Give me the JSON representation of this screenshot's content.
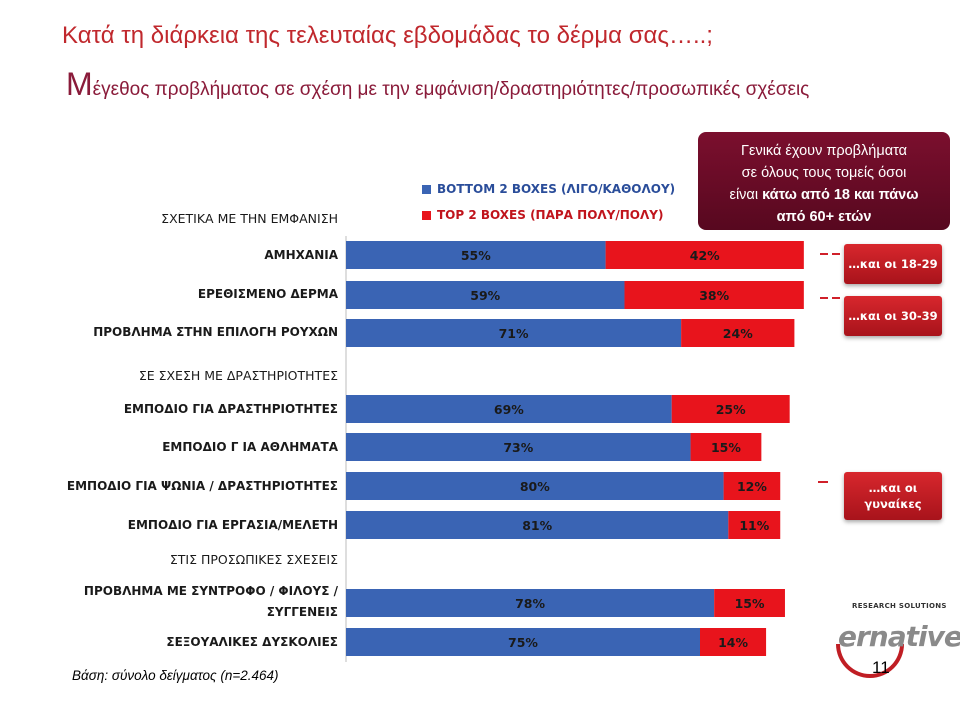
{
  "title_line1": "Κατά τη διάρκεια της τελευταίας εβδομάδας το δέρμα σας…..;",
  "title_line2_first": "Μ",
  "title_line2_rest": "έγεθος προβλήματος σε σχέση με την εμφάνιση/δραστηριότητες/προσωπικές σχέσεις",
  "callout": {
    "line1": "Γενικά έχουν προβλήματα",
    "line2": "σε όλους τους τομείς όσοι",
    "line3_plain": "είναι ",
    "line3_bold": "κάτω από 18 και πάνω",
    "line4_bold": "από 60+ ετών"
  },
  "tags": {
    "tag1": "…και οι 18-29",
    "tag2": "…και οι 30-39",
    "tag3_line1": "…και οι",
    "tag3_line2": "γυναίκες"
  },
  "footer": "Βάση: σύνολο δείγματος (n=2.464)",
  "page_number": "11",
  "logo": {
    "subtitle": "RESEARCH SOLUTIONS",
    "name": "ernative"
  },
  "colors": {
    "blue": "#3a64b4",
    "red": "#e8141c",
    "title": "#c0282d",
    "subtitle": "#8a1b3a"
  },
  "chart_data": {
    "type": "bar",
    "orientation": "horizontal",
    "stacked": true,
    "legend": [
      "BOTTOM 2 BOXES (ΛΙΓΟ/ΚΑΘΟΛΟΥ)",
      "TOP 2 BOXES (ΠΑΡΑ ΠΟΛΥ/ΠΟΛΥ)"
    ],
    "legend_placement": "top",
    "sections": [
      {
        "title": "ΣΧΕΤΙΚΑ ΜΕ ΤΗΝ ΕΜΦΑΝΙΣΗ",
        "rows": [
          {
            "label": "ΑΜΗΧΑΝΙΑ",
            "bottom2": 55,
            "top2": 42,
            "bottom2_label": "55%",
            "top2_label": "42%"
          },
          {
            "label": "ΕΡΕΘΙΣΜΕΝΟ ΔΕΡΜΑ",
            "bottom2": 59,
            "top2": 38,
            "bottom2_label": "59%",
            "top2_label": "38%"
          },
          {
            "label": "ΠΡΟΒΛΗΜΑ ΣΤΗΝ ΕΠΙΛΟΓΗ ΡΟΥΧΩΝ",
            "bottom2": 71,
            "top2": 24,
            "bottom2_label": "71%",
            "top2_label": "24%"
          }
        ]
      },
      {
        "title": "ΣΕ ΣΧΕΣΗ ΜΕ ΔΡΑΣΤΗΡΙΟΤΗΤΕΣ",
        "rows": [
          {
            "label": "ΕΜΠΟΔΙΟ ΓΙΑ ΔΡΑΣΤΗΡΙΟΤΗΤΕΣ",
            "bottom2": 69,
            "top2": 25,
            "bottom2_label": "69%",
            "top2_label": "25%"
          },
          {
            "label": "ΕΜΠΟΔΙΟ Γ ΙΑ ΑΘΛΗΜΑΤΑ",
            "bottom2": 73,
            "top2": 15,
            "bottom2_label": "73%",
            "top2_label": "15%"
          },
          {
            "label": "ΕΜΠΟΔΙΟ ΓΙΑ ΨΩΝΙΑ / ΔΡΑΣΤΗΡΙΟΤΗΤΕΣ",
            "bottom2": 80,
            "top2": 12,
            "bottom2_label": "80%",
            "top2_label": "12%"
          },
          {
            "label": "ΕΜΠΟΔΙΟ ΓΙΑ ΕΡΓΑΣΙΑ/ΜΕΛΕΤΗ",
            "bottom2": 81,
            "top2": 11,
            "bottom2_label": "81%",
            "top2_label": "11%"
          }
        ]
      },
      {
        "title": "ΣΤΙΣ ΠΡΟΣΩΠΙΚΕΣ ΣΧΕΣΕΙΣ",
        "rows": [
          {
            "label": "ΠΡΟΒΛΗΜΑ ΜΕ ΣΥΝΤΡΟΦΟ / ΦΙΛΟΥΣ / ΣΥΓΓΕΝΕΙΣ",
            "label_lines": [
              "ΠΡΟΒΛΗΜΑ ΜΕ ΣΥΝΤΡΟΦΟ / ΦΙΛΟΥΣ /",
              "ΣΥΓΓΕΝΕΙΣ"
            ],
            "bottom2": 78,
            "top2": 15,
            "bottom2_label": "78%",
            "top2_label": "15%"
          },
          {
            "label": "ΣΕΞΟΥΑΛΙΚΕΣ ΔΥΣΚΟΛΙΕΣ",
            "bottom2": 75,
            "top2": 14,
            "bottom2_label": "75%",
            "top2_label": "14%"
          }
        ]
      }
    ]
  }
}
